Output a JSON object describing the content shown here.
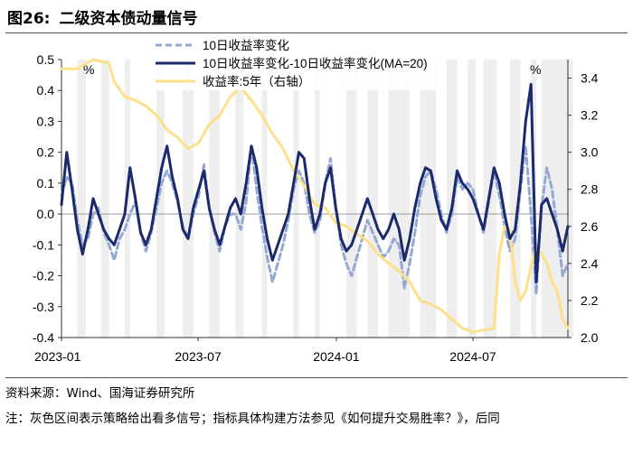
{
  "figure": {
    "number": "图26:",
    "title": "二级资本债动量信号"
  },
  "chart_data": {
    "type": "line",
    "title": "二级资本债动量信号",
    "x_tick_labels": [
      "2023-01",
      "2023-07",
      "2024-01",
      "2024-07"
    ],
    "x_tick_weeks": [
      0,
      25.9,
      52.1,
      78.0
    ],
    "left_axis": {
      "unit": "%",
      "ylim": [
        -0.4,
        0.5
      ],
      "ticks": [
        "-0.4",
        "-0.3",
        "-0.2",
        "-0.1",
        "0.0",
        "0.1",
        "0.2",
        "0.3",
        "0.4",
        "0.5"
      ]
    },
    "right_axis": {
      "unit": "%",
      "ylim": [
        2.0,
        3.5
      ],
      "ticks": [
        "2.0",
        "2.2",
        "2.4",
        "2.6",
        "2.8",
        "3.0",
        "3.2",
        "3.4"
      ]
    },
    "legend": {
      "position": "top-center",
      "entries": [
        "10日收益率变化",
        "10日收益率变化-10日收益率变化(MA=20)",
        "收益率:5年（右轴）"
      ]
    },
    "colors": {
      "change": "#94a8d4",
      "signal": "#1a2a6c",
      "yield": "#fde08a",
      "shade": "#eeeeee"
    },
    "shaded_periods_weeks": [
      [
        3,
        4.6
      ],
      [
        7.5,
        9
      ],
      [
        12,
        13
      ],
      [
        18,
        19.5
      ],
      [
        23,
        25
      ],
      [
        28,
        30
      ],
      [
        33,
        34.5
      ],
      [
        38,
        39
      ],
      [
        44,
        45
      ],
      [
        48,
        49
      ],
      [
        54,
        56
      ],
      [
        58,
        60
      ],
      [
        62,
        66
      ],
      [
        68,
        71
      ],
      [
        73,
        75
      ],
      [
        77,
        78.5
      ],
      [
        80,
        82.5
      ],
      [
        85,
        87
      ],
      [
        89,
        90
      ],
      [
        91,
        97
      ]
    ],
    "series": [
      {
        "name": "10日收益率变化",
        "axis": "left",
        "style": "dashed",
        "x": [
          0,
          1,
          2,
          3,
          4,
          5,
          6,
          7,
          8,
          9,
          10,
          11,
          12,
          13,
          14,
          15,
          16,
          17,
          18,
          19,
          20,
          21,
          22,
          23,
          24,
          25,
          26,
          27,
          28,
          29,
          30,
          31,
          32,
          33,
          34,
          35,
          36,
          37,
          38,
          39,
          40,
          41,
          42,
          43,
          44,
          45,
          46,
          47,
          48,
          49,
          50,
          51,
          52,
          53,
          54,
          55,
          56,
          57,
          58,
          59,
          60,
          61,
          62,
          63,
          64,
          65,
          66,
          67,
          68,
          69,
          70,
          71,
          72,
          73,
          74,
          75,
          76,
          77,
          78,
          79,
          80,
          81,
          82,
          83,
          84,
          85,
          86,
          87,
          88,
          89,
          90,
          91,
          92,
          93,
          94,
          95,
          96
        ],
        "values": [
          0.06,
          0.12,
          0.1,
          -0.02,
          -0.1,
          -0.08,
          0.0,
          0.02,
          -0.06,
          -0.1,
          -0.15,
          -0.08,
          -0.05,
          0.0,
          0.04,
          -0.06,
          -0.12,
          -0.06,
          0.02,
          0.1,
          0.14,
          0.1,
          0.04,
          -0.04,
          -0.08,
          0.0,
          0.06,
          0.16,
          0.02,
          -0.06,
          -0.12,
          -0.04,
          0.0,
          0.0,
          -0.05,
          0.04,
          0.22,
          0.08,
          -0.04,
          -0.14,
          -0.22,
          -0.16,
          -0.1,
          -0.02,
          0.08,
          0.14,
          0.1,
          0.0,
          -0.06,
          -0.02,
          0.1,
          0.18,
          0.02,
          -0.1,
          -0.16,
          -0.2,
          -0.14,
          -0.08,
          -0.02,
          -0.06,
          -0.1,
          -0.14,
          -0.12,
          -0.08,
          -0.1,
          -0.24,
          -0.16,
          -0.06,
          0.06,
          0.12,
          0.14,
          0.08,
          0.0,
          -0.06,
          0.0,
          0.12,
          0.08,
          0.1,
          0.08,
          0.0,
          -0.06,
          0.04,
          0.14,
          0.06,
          -0.04,
          -0.12,
          -0.08,
          0.08,
          0.22,
          0.0,
          -0.26,
          0.02,
          0.15,
          0.08,
          -0.05,
          -0.2,
          -0.16
        ]
      },
      {
        "name": "10日收益率变化-10日收益率变化(MA=20)",
        "axis": "left",
        "style": "solid",
        "x": [
          0,
          1,
          2,
          3,
          4,
          5,
          6,
          7,
          8,
          9,
          10,
          11,
          12,
          13,
          14,
          15,
          16,
          17,
          18,
          19,
          20,
          21,
          22,
          23,
          24,
          25,
          26,
          27,
          28,
          29,
          30,
          31,
          32,
          33,
          34,
          35,
          36,
          37,
          38,
          39,
          40,
          41,
          42,
          43,
          44,
          45,
          46,
          47,
          48,
          49,
          50,
          51,
          52,
          53,
          54,
          55,
          56,
          57,
          58,
          59,
          60,
          61,
          62,
          63,
          64,
          65,
          66,
          67,
          68,
          69,
          70,
          71,
          72,
          73,
          74,
          75,
          76,
          77,
          78,
          79,
          80,
          81,
          82,
          83,
          84,
          85,
          86,
          87,
          88,
          89,
          90,
          91,
          92,
          93,
          94,
          95,
          96
        ],
        "values": [
          0.03,
          0.2,
          0.08,
          -0.05,
          -0.13,
          -0.05,
          0.05,
          0.0,
          -0.05,
          -0.08,
          -0.1,
          -0.05,
          0.0,
          0.15,
          0.05,
          -0.06,
          -0.1,
          -0.05,
          0.05,
          0.15,
          0.22,
          0.12,
          0.05,
          -0.05,
          -0.08,
          0.02,
          0.08,
          0.14,
          0.02,
          -0.05,
          -0.1,
          -0.04,
          0.02,
          0.05,
          0.0,
          0.1,
          0.22,
          0.15,
          0.02,
          -0.08,
          -0.15,
          -0.1,
          -0.05,
          0.0,
          0.1,
          0.2,
          0.18,
          0.05,
          -0.05,
          0.0,
          0.1,
          0.15,
          0.02,
          -0.08,
          -0.12,
          -0.1,
          -0.05,
          0.0,
          0.05,
          0.0,
          -0.05,
          -0.08,
          -0.05,
          0.0,
          -0.05,
          -0.15,
          -0.08,
          0.02,
          0.1,
          0.15,
          0.14,
          0.05,
          -0.02,
          -0.05,
          0.02,
          0.14,
          0.1,
          0.08,
          0.05,
          0.0,
          -0.05,
          0.05,
          0.15,
          0.1,
          0.0,
          -0.08,
          -0.05,
          0.1,
          0.3,
          0.42,
          -0.22,
          0.03,
          0.05,
          0.0,
          -0.05,
          -0.12,
          -0.04
        ]
      },
      {
        "name": "收益率:5年（右轴）",
        "axis": "right",
        "style": "solid",
        "x": [
          0,
          3,
          6,
          9,
          10,
          12,
          14,
          16,
          18,
          20,
          22,
          24,
          26,
          28,
          30,
          32,
          34,
          36,
          38,
          40,
          42,
          44,
          46,
          48,
          50,
          52,
          54,
          56,
          58,
          60,
          62,
          64,
          66,
          68,
          70,
          72,
          74,
          76,
          78,
          80,
          82,
          83,
          84,
          85,
          86,
          87,
          88,
          89,
          90,
          91,
          92,
          93,
          94,
          95,
          96
        ],
        "values": [
          3.45,
          3.45,
          3.5,
          3.48,
          3.38,
          3.3,
          3.28,
          3.25,
          3.2,
          3.12,
          3.08,
          3.02,
          3.05,
          3.15,
          3.2,
          3.3,
          3.35,
          3.28,
          3.2,
          3.1,
          3.02,
          2.9,
          2.82,
          2.72,
          2.7,
          2.62,
          2.6,
          2.56,
          2.52,
          2.45,
          2.4,
          2.36,
          2.3,
          2.2,
          2.18,
          2.15,
          2.1,
          2.05,
          2.03,
          2.04,
          2.05,
          2.45,
          2.6,
          2.58,
          2.3,
          2.2,
          2.25,
          2.38,
          2.5,
          2.45,
          2.4,
          2.3,
          2.25,
          2.1,
          2.05
        ]
      }
    ]
  },
  "notes": {
    "source": "资料来源：Wind、国海证券研究所",
    "footnote": "注：灰色区间表示策略给出看多信号；指标具体构建方法参见《如何提升交易胜率？》，后同"
  }
}
